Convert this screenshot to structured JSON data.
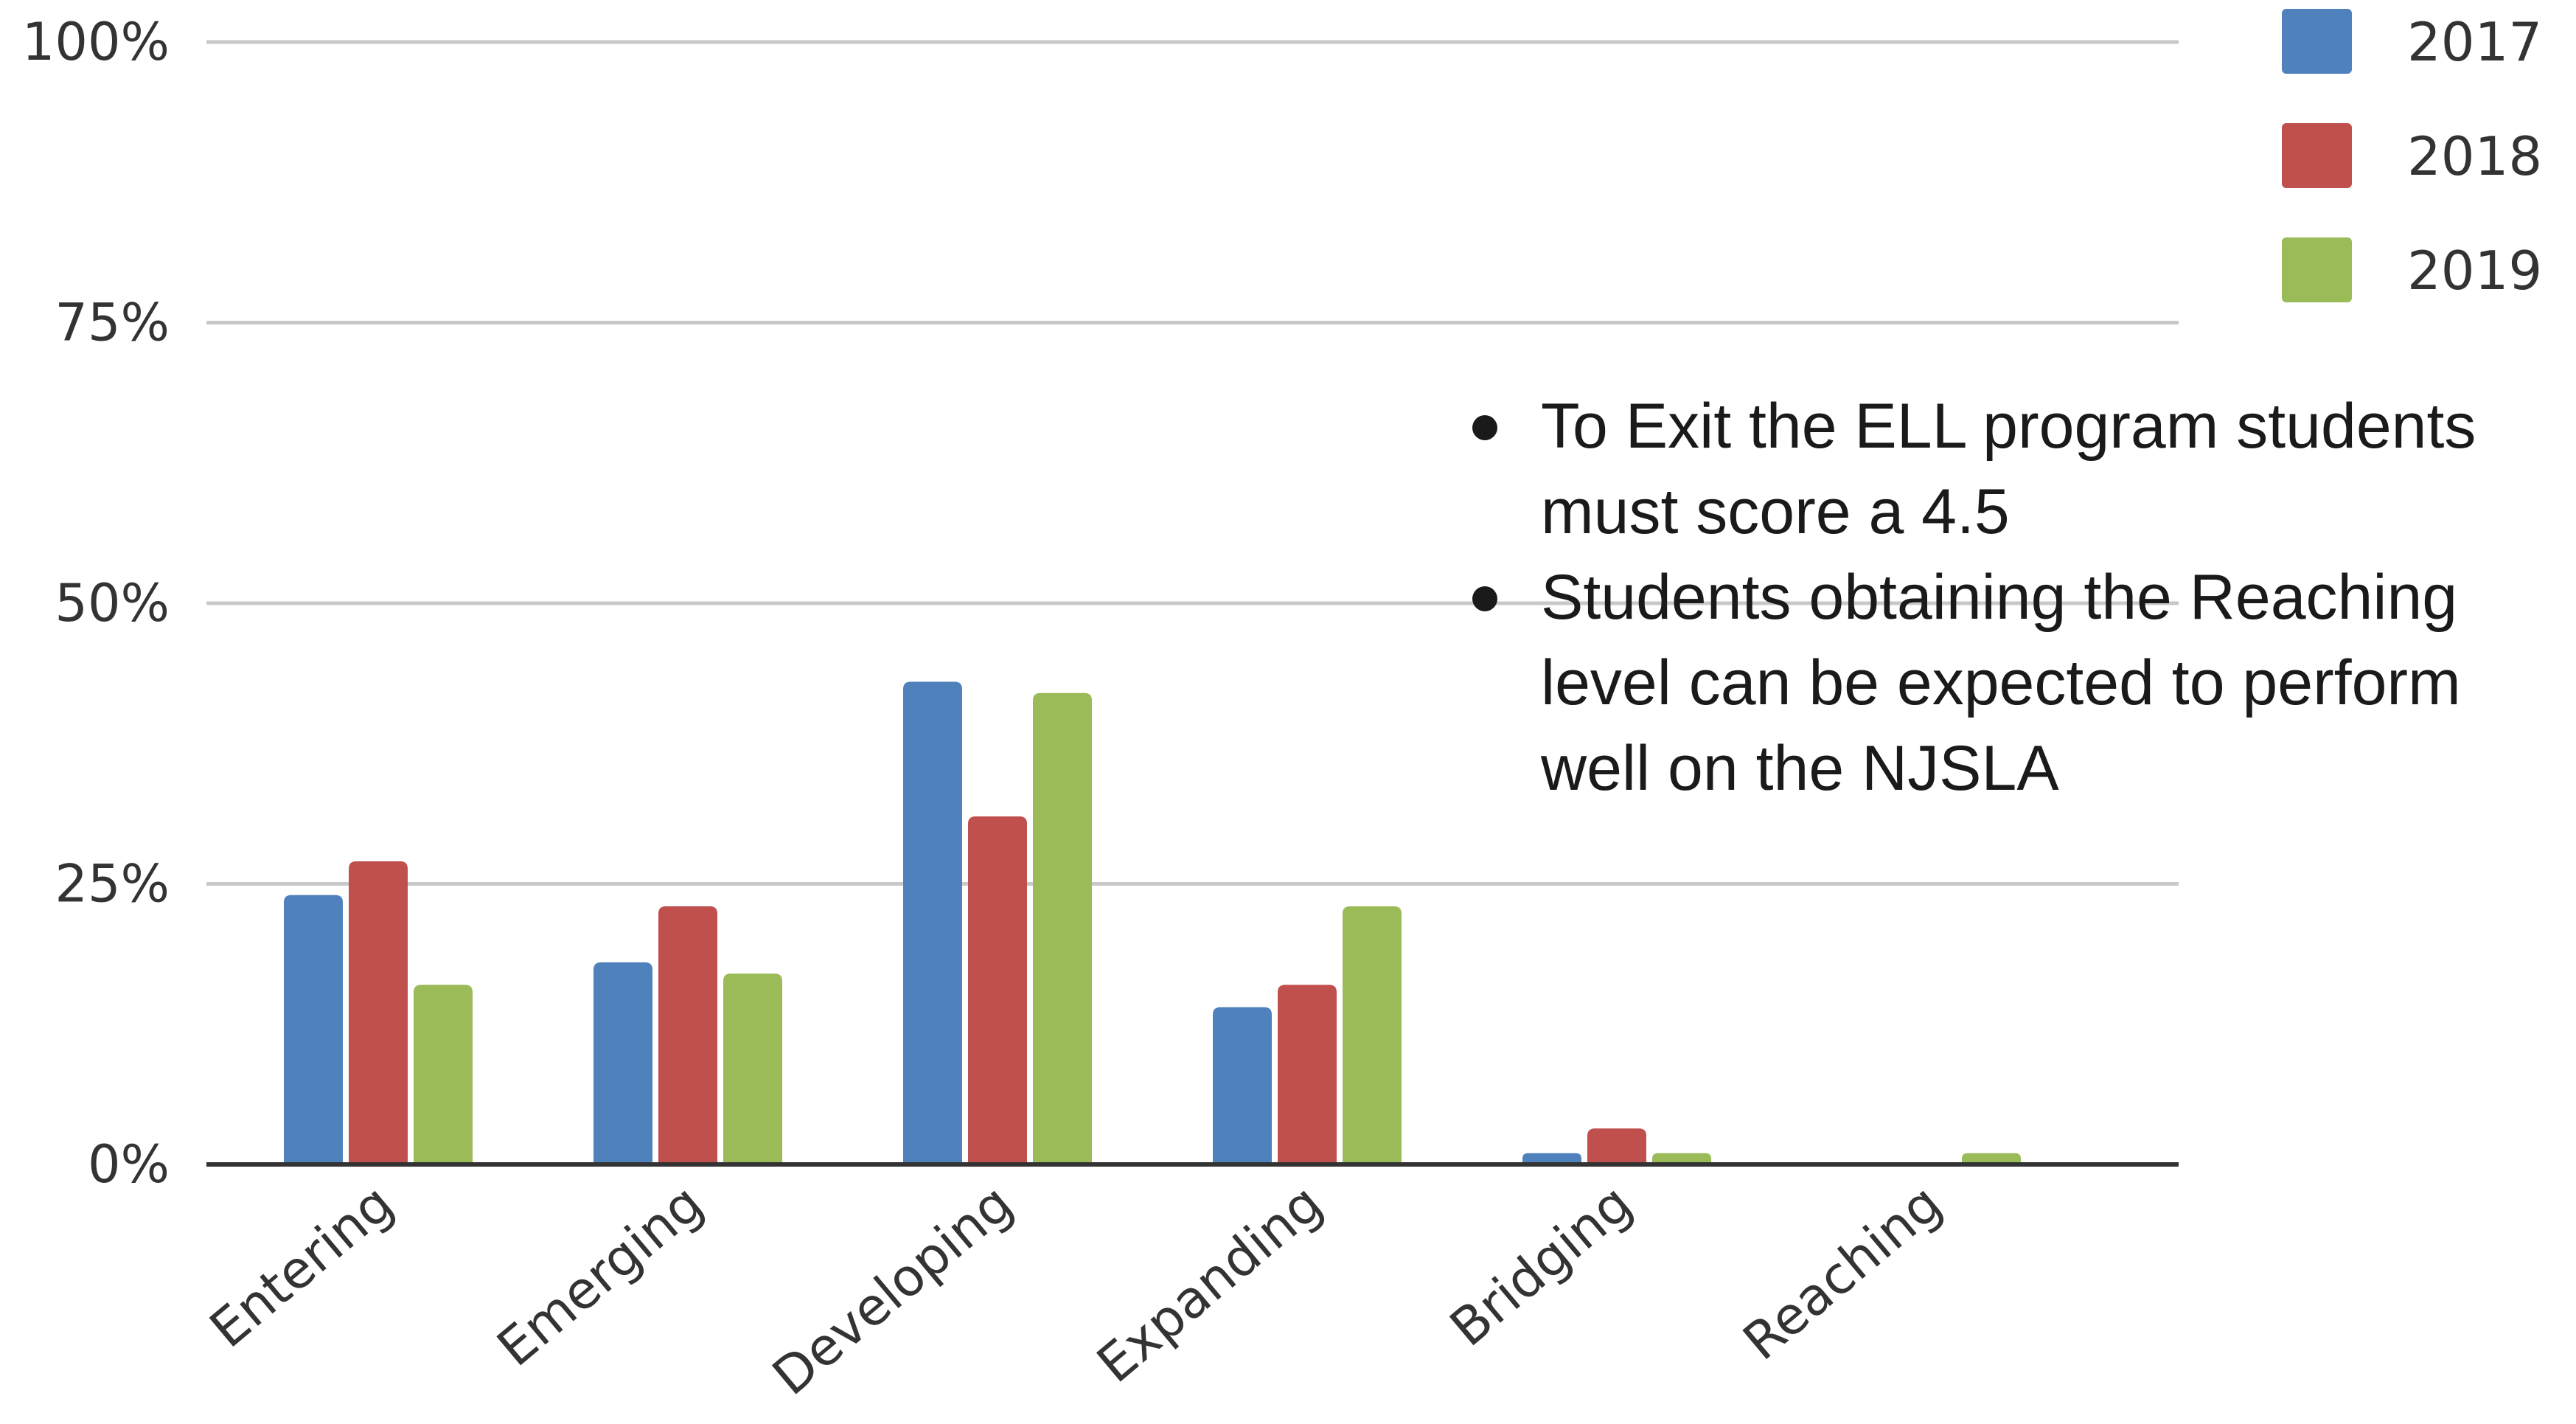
{
  "chart_data": {
    "type": "bar",
    "categories": [
      "Entering",
      "Emerging",
      "Developing",
      "Expanding",
      "Bridging",
      "Reaching"
    ],
    "series": [
      {
        "name": "2017",
        "color": "#4F81BD",
        "values": [
          24,
          18,
          43,
          14,
          1,
          0
        ]
      },
      {
        "name": "2018",
        "color": "#C0504D",
        "values": [
          27,
          23,
          31,
          16,
          3.2,
          0
        ]
      },
      {
        "name": "2019",
        "color": "#9BBB59",
        "values": [
          16,
          17,
          42,
          23,
          1,
          1
        ]
      }
    ],
    "ylim": [
      0,
      100
    ],
    "yticks": [
      0,
      25,
      50,
      75,
      100
    ],
    "ytick_labels": [
      "0%",
      "25%",
      "50%",
      "75%",
      "100%"
    ],
    "grid": true,
    "legend": "top-right"
  },
  "notes": [
    "To Exit the ELL program students must score a 4.5",
    "Students obtaining the Reaching level can be expected to perform well on  the NJSLA"
  ]
}
